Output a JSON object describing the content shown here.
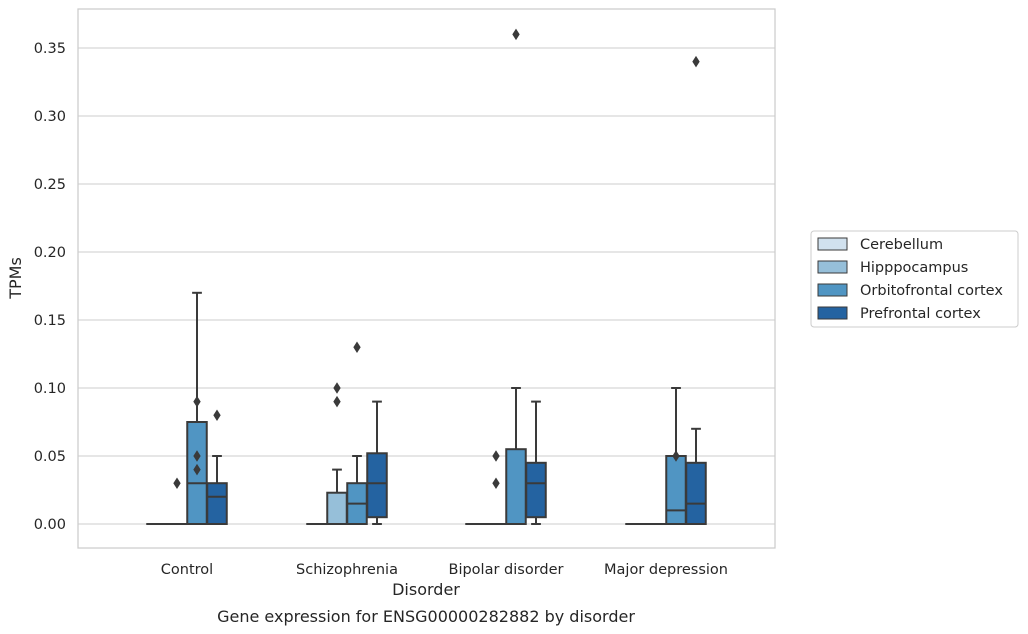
{
  "chart_data": {
    "type": "box",
    "xlabel": "Disorder",
    "ylabel": "TPMs",
    "caption": "Gene expression for ENSG00000282882 by disorder",
    "categories": [
      "Control",
      "Schizophrenia",
      "Bipolar disorder",
      "Major depression"
    ],
    "ylim": [
      -0.017,
      0.38
    ],
    "yticks": [
      0.0,
      0.05,
      0.1,
      0.15,
      0.2,
      0.25,
      0.3,
      0.35
    ],
    "ytick_labels": [
      "0.00",
      "0.05",
      "0.10",
      "0.15",
      "0.20",
      "0.25",
      "0.30",
      "0.35"
    ],
    "grid": "horizontal",
    "legend_position": "right",
    "series": [
      {
        "name": "Cerebellum",
        "color": "#d1e1ee",
        "boxes": [
          {
            "q1": 0,
            "median": 0,
            "q3": 0,
            "whislo": 0,
            "whishi": 0,
            "fliers": []
          },
          {
            "q1": 0,
            "median": 0,
            "q3": 0,
            "whislo": 0,
            "whishi": 0,
            "fliers": []
          },
          {
            "q1": 0,
            "median": 0,
            "q3": 0,
            "whislo": 0,
            "whishi": 0,
            "fliers": []
          },
          {
            "q1": 0,
            "median": 0,
            "q3": 0,
            "whislo": 0,
            "whishi": 0,
            "fliers": []
          }
        ]
      },
      {
        "name": "Hipppocampus",
        "color": "#96bfd9",
        "boxes": [
          {
            "q1": 0,
            "median": 0,
            "q3": 0,
            "whislo": 0,
            "whishi": 0,
            "fliers": [
              0.03
            ]
          },
          {
            "q1": 0,
            "median": 0,
            "q3": 0.023,
            "whislo": 0,
            "whishi": 0.04,
            "fliers": [
              0.09,
              0.1
            ]
          },
          {
            "q1": 0,
            "median": 0,
            "q3": 0,
            "whislo": 0,
            "whishi": 0,
            "fliers": [
              0.03,
              0.05
            ]
          },
          {
            "q1": 0,
            "median": 0,
            "q3": 0,
            "whislo": 0,
            "whishi": 0,
            "fliers": []
          }
        ]
      },
      {
        "name": "Orbitofrontal cortex",
        "color": "#5095c3",
        "boxes": [
          {
            "q1": 0,
            "median": 0.03,
            "q3": 0.075,
            "whislo": 0,
            "whishi": 0.17,
            "fliers": [
              0.04,
              0.05,
              0.09
            ]
          },
          {
            "q1": 0,
            "median": 0.015,
            "q3": 0.03,
            "whislo": 0,
            "whishi": 0.05,
            "fliers": [
              0.13
            ]
          },
          {
            "q1": 0,
            "median": 0,
            "q3": 0.055,
            "whislo": 0,
            "whishi": 0.1,
            "fliers": [
              0.36
            ]
          },
          {
            "q1": 0,
            "median": 0.01,
            "q3": 0.05,
            "whislo": 0,
            "whishi": 0.1,
            "fliers": [
              0.05
            ]
          }
        ]
      },
      {
        "name": "Prefrontal cortex",
        "color": "#2463a1",
        "boxes": [
          {
            "q1": 0,
            "median": 0.02,
            "q3": 0.03,
            "whislo": 0,
            "whishi": 0.05,
            "fliers": [
              0.08
            ]
          },
          {
            "q1": 0.005,
            "median": 0.03,
            "q3": 0.052,
            "whislo": 0,
            "whishi": 0.09,
            "fliers": []
          },
          {
            "q1": 0.005,
            "median": 0.03,
            "q3": 0.045,
            "whislo": 0,
            "whishi": 0.09,
            "fliers": []
          },
          {
            "q1": 0,
            "median": 0.015,
            "q3": 0.045,
            "whislo": 0,
            "whishi": 0.07,
            "fliers": [
              0.34
            ]
          }
        ]
      }
    ]
  }
}
